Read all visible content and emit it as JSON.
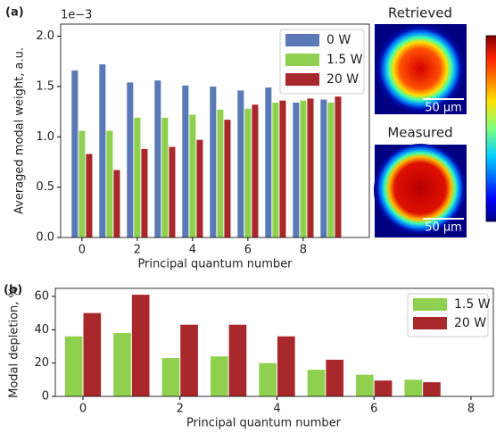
{
  "panel_labels": [
    "(a)",
    "(b)"
  ],
  "images": {
    "top_title": "Retrieved",
    "bottom_title": "Measured",
    "top_scale": "50 µm",
    "bottom_scale": "50 µm"
  },
  "chart_data": [
    {
      "type": "bar",
      "x_label": "Principal quantum number",
      "y_label": "Averaged modal weight, a.u.",
      "y_offset_label": "1e−3",
      "x": [
        0,
        1,
        2,
        3,
        4,
        5,
        6,
        7,
        8,
        9
      ],
      "series": [
        {
          "name": "0 W",
          "color": "#5a7ab7",
          "values": [
            1.66,
            1.72,
            1.54,
            1.56,
            1.51,
            1.5,
            1.46,
            1.49,
            1.34,
            1.37
          ]
        },
        {
          "name": "1.5 W",
          "color": "#8fd14f",
          "values": [
            1.06,
            1.06,
            1.19,
            1.19,
            1.22,
            1.27,
            1.28,
            1.34,
            1.36,
            1.34
          ]
        },
        {
          "name": "20 W",
          "color": "#a8282c",
          "values": [
            0.83,
            0.67,
            0.88,
            0.9,
            0.97,
            1.17,
            1.32,
            1.36,
            1.38,
            1.4
          ]
        }
      ],
      "xlim": [
        -0.77,
        10.39
      ],
      "xticks": [
        0,
        2,
        4,
        6,
        8
      ],
      "ylim": [
        0,
        2.12
      ],
      "yticks": [
        {
          "value": 0,
          "label": "0.0"
        },
        0.5,
        {
          "value": 1,
          "label": "1.0"
        },
        1.5,
        {
          "value": 2,
          "label": "2.0"
        }
      ],
      "legend": "upper right"
    },
    {
      "type": "bar",
      "x_label": "Principal quantum number",
      "y_label": "Modal depletion, %",
      "x": [
        0,
        1,
        2,
        3,
        4,
        5,
        6,
        7
      ],
      "series": [
        {
          "name": "1.5 W",
          "color": "#8fd14f",
          "values": [
            36,
            38,
            23,
            24,
            20,
            16,
            13,
            10
          ]
        },
        {
          "name": "20 W",
          "color": "#a8282c",
          "values": [
            50,
            61,
            43,
            43,
            36,
            22,
            9.5,
            8.5
          ]
        }
      ],
      "xlim": [
        -0.57,
        8.46
      ],
      "xticks": [
        0,
        2,
        4,
        6,
        8
      ],
      "ylim": [
        0,
        64.8
      ],
      "yticks": [
        0,
        20,
        40,
        60
      ],
      "legend": "upper right"
    }
  ]
}
